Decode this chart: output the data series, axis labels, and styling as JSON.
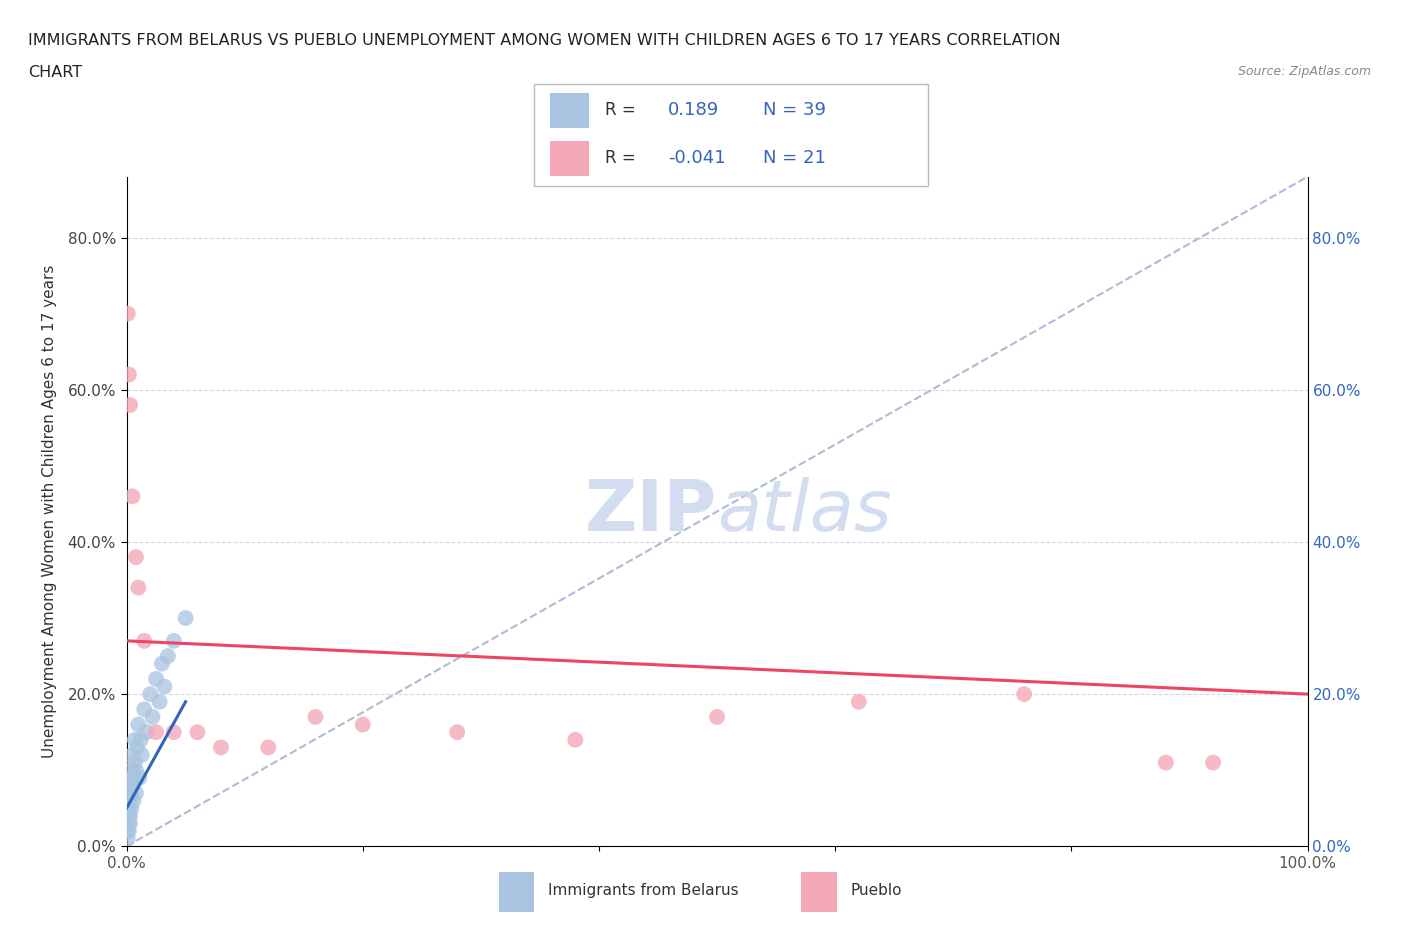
{
  "title_line1": "IMMIGRANTS FROM BELARUS VS PUEBLO UNEMPLOYMENT AMONG WOMEN WITH CHILDREN AGES 6 TO 17 YEARS CORRELATION",
  "title_line2": "CHART",
  "source_text": "Source: ZipAtlas.com",
  "ylabel": "Unemployment Among Women with Children Ages 6 to 17 years",
  "xlim": [
    0.0,
    1.0
  ],
  "ylim": [
    0.0,
    0.88
  ],
  "ytick_positions": [
    0.0,
    0.2,
    0.4,
    0.6,
    0.8
  ],
  "ytick_labels": [
    "0.0%",
    "20.0%",
    "40.0%",
    "60.0%",
    "80.0%"
  ],
  "xtick_positions": [
    0.0,
    0.2,
    0.4,
    0.6,
    0.8,
    1.0
  ],
  "xtick_labels": [
    "0.0%",
    "",
    "",
    "",
    "",
    "100.0%"
  ],
  "R_blue": 0.189,
  "N_blue": 39,
  "R_pink": -0.041,
  "N_pink": 21,
  "blue_color": "#a8c4e0",
  "pink_color": "#f4a8b8",
  "trend_blue_color": "#3366bb",
  "trend_pink_color": "#ee4466",
  "dashed_line_color": "#99aacc",
  "watermark_color": "#ccd8ee",
  "blue_x": [
    0.001,
    0.001,
    0.001,
    0.002,
    0.002,
    0.002,
    0.002,
    0.003,
    0.003,
    0.003,
    0.003,
    0.004,
    0.004,
    0.004,
    0.005,
    0.005,
    0.005,
    0.006,
    0.006,
    0.007,
    0.007,
    0.008,
    0.008,
    0.009,
    0.01,
    0.011,
    0.012,
    0.013,
    0.015,
    0.017,
    0.02,
    0.022,
    0.025,
    0.028,
    0.03,
    0.032,
    0.035,
    0.04,
    0.05
  ],
  "blue_y": [
    0.02,
    0.03,
    0.01,
    0.05,
    0.04,
    0.06,
    0.02,
    0.08,
    0.06,
    0.04,
    0.03,
    0.07,
    0.09,
    0.05,
    0.1,
    0.08,
    0.12,
    0.06,
    0.09,
    0.11,
    0.14,
    0.07,
    0.1,
    0.13,
    0.16,
    0.09,
    0.14,
    0.12,
    0.18,
    0.15,
    0.2,
    0.17,
    0.22,
    0.19,
    0.24,
    0.21,
    0.25,
    0.27,
    0.3
  ],
  "pink_x": [
    0.001,
    0.002,
    0.003,
    0.005,
    0.008,
    0.01,
    0.015,
    0.025,
    0.04,
    0.06,
    0.08,
    0.12,
    0.16,
    0.2,
    0.28,
    0.38,
    0.5,
    0.62,
    0.76,
    0.88,
    0.92
  ],
  "pink_y": [
    0.7,
    0.62,
    0.58,
    0.46,
    0.38,
    0.34,
    0.27,
    0.15,
    0.15,
    0.15,
    0.13,
    0.13,
    0.17,
    0.16,
    0.15,
    0.14,
    0.17,
    0.19,
    0.2,
    0.11,
    0.11
  ],
  "pink_trend_x0": 0.0,
  "pink_trend_y0": 0.27,
  "pink_trend_x1": 1.0,
  "pink_trend_y1": 0.2,
  "blue_trend_x0": 0.0,
  "blue_trend_y0": 0.05,
  "blue_trend_x1": 0.05,
  "blue_trend_y1": 0.19
}
